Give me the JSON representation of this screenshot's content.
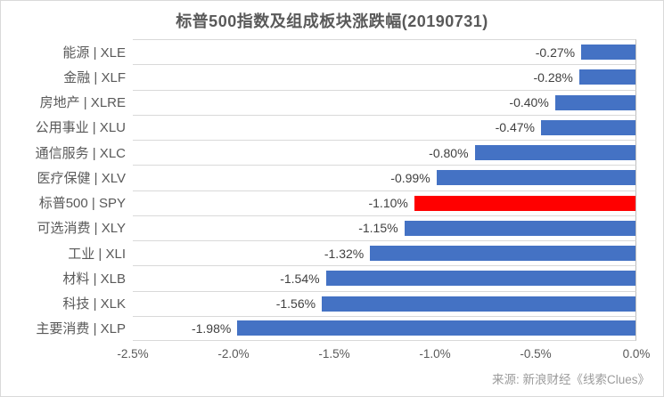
{
  "title": "标普500指数及组成板块涨跌幅(20190731)",
  "source_note": "来源: 新浪财经《线索Clues》",
  "colors": {
    "bar_default": "#4472c4",
    "bar_highlight": "#ff0000",
    "gridline": "#d9d9d9",
    "axis_line": "#bfbfbf",
    "title_text": "#595959",
    "category_text": "#595959",
    "value_text": "#404040",
    "tick_text": "#595959",
    "source_text": "#9b9b9b"
  },
  "chart_data": {
    "type": "bar",
    "orientation": "horizontal",
    "title": "标普500指数及组成板块涨跌幅(20190731)",
    "xlabel": "",
    "ylabel": "",
    "xlim": [
      -2.5,
      0.0
    ],
    "grid": "category separators (horizontal), no vertical gridlines",
    "legend": "none",
    "x_ticks": [
      {
        "value": -2.5,
        "label": "-2.5%"
      },
      {
        "value": -2.0,
        "label": "-2.0%"
      },
      {
        "value": -1.5,
        "label": "-1.5%"
      },
      {
        "value": -1.0,
        "label": "-1.0%"
      },
      {
        "value": -0.5,
        "label": "-0.5%"
      },
      {
        "value": 0.0,
        "label": "0.0%"
      }
    ],
    "series": [
      {
        "category": "能源 | XLE",
        "value": -0.27,
        "label": "-0.27%",
        "highlight": false
      },
      {
        "category": "金融 | XLF",
        "value": -0.28,
        "label": "-0.28%",
        "highlight": false
      },
      {
        "category": "房地产 | XLRE",
        "value": -0.4,
        "label": "-0.40%",
        "highlight": false
      },
      {
        "category": "公用事业 | XLU",
        "value": -0.47,
        "label": "-0.47%",
        "highlight": false
      },
      {
        "category": "通信服务 | XLC",
        "value": -0.8,
        "label": "-0.80%",
        "highlight": false
      },
      {
        "category": "医疗保健 | XLV",
        "value": -0.99,
        "label": "-0.99%",
        "highlight": false
      },
      {
        "category": "标普500 | SPY",
        "value": -1.1,
        "label": "-1.10%",
        "highlight": true
      },
      {
        "category": "可选消费 | XLY",
        "value": -1.15,
        "label": "-1.15%",
        "highlight": false
      },
      {
        "category": "工业 | XLI",
        "value": -1.32,
        "label": "-1.32%",
        "highlight": false
      },
      {
        "category": "材料 | XLB",
        "value": -1.54,
        "label": "-1.54%",
        "highlight": false
      },
      {
        "category": "科技 | XLK",
        "value": -1.56,
        "label": "-1.56%",
        "highlight": false
      },
      {
        "category": "主要消费 | XLP",
        "value": -1.98,
        "label": "-1.98%",
        "highlight": false
      }
    ]
  }
}
